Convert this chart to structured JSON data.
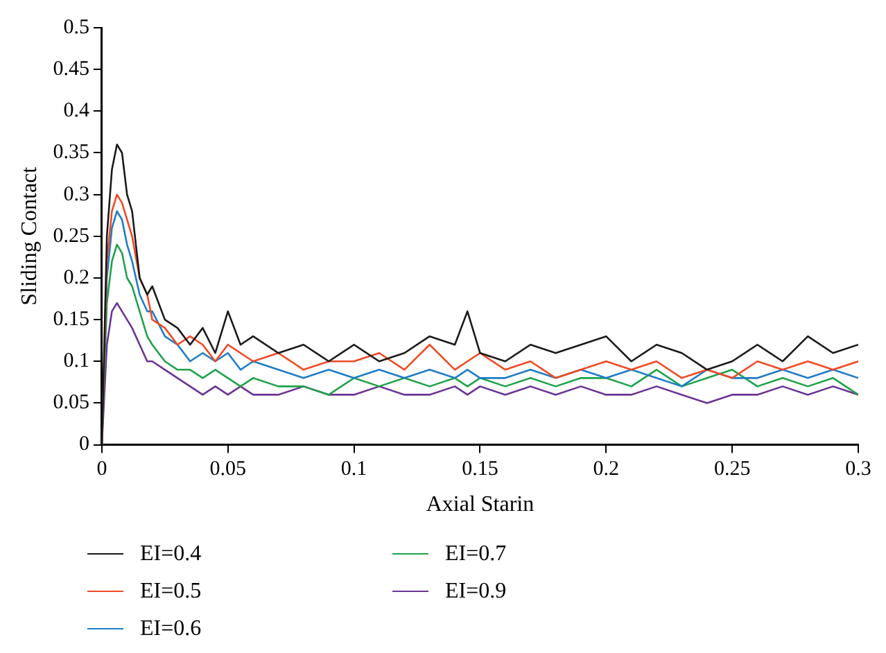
{
  "chart_data": {
    "type": "line",
    "xlabel": "Axial Starin",
    "ylabel": "Sliding Contact",
    "x": [
      0,
      0.002,
      0.004,
      0.006,
      0.008,
      0.01,
      0.012,
      0.015,
      0.018,
      0.02,
      0.025,
      0.03,
      0.035,
      0.04,
      0.045,
      0.05,
      0.055,
      0.06,
      0.07,
      0.08,
      0.09,
      0.1,
      0.11,
      0.12,
      0.13,
      0.14,
      0.145,
      0.15,
      0.16,
      0.17,
      0.18,
      0.19,
      0.2,
      0.21,
      0.22,
      0.23,
      0.24,
      0.25,
      0.26,
      0.27,
      0.28,
      0.29,
      0.3
    ],
    "series": [
      {
        "name": "EI=0.4",
        "color": "#1a1a1a",
        "values": [
          0,
          0.25,
          0.33,
          0.36,
          0.35,
          0.3,
          0.28,
          0.2,
          0.18,
          0.19,
          0.15,
          0.14,
          0.12,
          0.14,
          0.11,
          0.16,
          0.12,
          0.13,
          0.11,
          0.12,
          0.1,
          0.12,
          0.1,
          0.11,
          0.13,
          0.12,
          0.16,
          0.11,
          0.1,
          0.12,
          0.11,
          0.12,
          0.13,
          0.1,
          0.12,
          0.11,
          0.09,
          0.1,
          0.12,
          0.1,
          0.13,
          0.11,
          0.12
        ]
      },
      {
        "name": "EI=0.5",
        "color": "#f04a24",
        "values": [
          0,
          0.22,
          0.28,
          0.3,
          0.29,
          0.27,
          0.25,
          0.2,
          0.18,
          0.15,
          0.14,
          0.12,
          0.13,
          0.12,
          0.1,
          0.12,
          0.11,
          0.1,
          0.11,
          0.09,
          0.1,
          0.1,
          0.11,
          0.09,
          0.12,
          0.09,
          0.1,
          0.11,
          0.09,
          0.1,
          0.08,
          0.09,
          0.1,
          0.09,
          0.1,
          0.08,
          0.09,
          0.08,
          0.1,
          0.09,
          0.1,
          0.09,
          0.1
        ]
      },
      {
        "name": "EI=0.6",
        "color": "#1f7cc8",
        "values": [
          0,
          0.2,
          0.26,
          0.28,
          0.27,
          0.24,
          0.22,
          0.18,
          0.16,
          0.16,
          0.13,
          0.12,
          0.1,
          0.11,
          0.1,
          0.11,
          0.09,
          0.1,
          0.09,
          0.08,
          0.09,
          0.08,
          0.09,
          0.08,
          0.09,
          0.08,
          0.09,
          0.08,
          0.08,
          0.09,
          0.08,
          0.09,
          0.08,
          0.09,
          0.08,
          0.07,
          0.09,
          0.08,
          0.08,
          0.09,
          0.08,
          0.09,
          0.08
        ]
      },
      {
        "name": "EI=0.7",
        "color": "#1fa24a",
        "values": [
          0,
          0.17,
          0.22,
          0.24,
          0.23,
          0.2,
          0.19,
          0.16,
          0.13,
          0.12,
          0.1,
          0.09,
          0.09,
          0.08,
          0.09,
          0.08,
          0.07,
          0.08,
          0.07,
          0.07,
          0.06,
          0.08,
          0.07,
          0.08,
          0.07,
          0.08,
          0.07,
          0.08,
          0.07,
          0.08,
          0.07,
          0.08,
          0.08,
          0.07,
          0.09,
          0.07,
          0.08,
          0.09,
          0.07,
          0.08,
          0.07,
          0.08,
          0.06
        ]
      },
      {
        "name": "EI=0.9",
        "color": "#6a3496",
        "values": [
          0,
          0.12,
          0.16,
          0.17,
          0.16,
          0.15,
          0.14,
          0.12,
          0.1,
          0.1,
          0.09,
          0.08,
          0.07,
          0.06,
          0.07,
          0.06,
          0.07,
          0.06,
          0.06,
          0.07,
          0.06,
          0.06,
          0.07,
          0.06,
          0.06,
          0.07,
          0.06,
          0.07,
          0.06,
          0.07,
          0.06,
          0.07,
          0.06,
          0.06,
          0.07,
          0.06,
          0.05,
          0.06,
          0.06,
          0.07,
          0.06,
          0.07,
          0.06
        ]
      }
    ],
    "xlim": [
      0,
      0.3
    ],
    "xticks": [
      0,
      0.05,
      0.1,
      0.15,
      0.2,
      0.25,
      0.3
    ],
    "ylim": [
      0,
      0.5
    ],
    "yticks": [
      0,
      0.05,
      0.1,
      0.15,
      0.2,
      0.25,
      0.3,
      0.35,
      0.4,
      0.45,
      0.5
    ],
    "grid": false,
    "legend": "bottom",
    "marker": "none",
    "line_style": "solid"
  }
}
